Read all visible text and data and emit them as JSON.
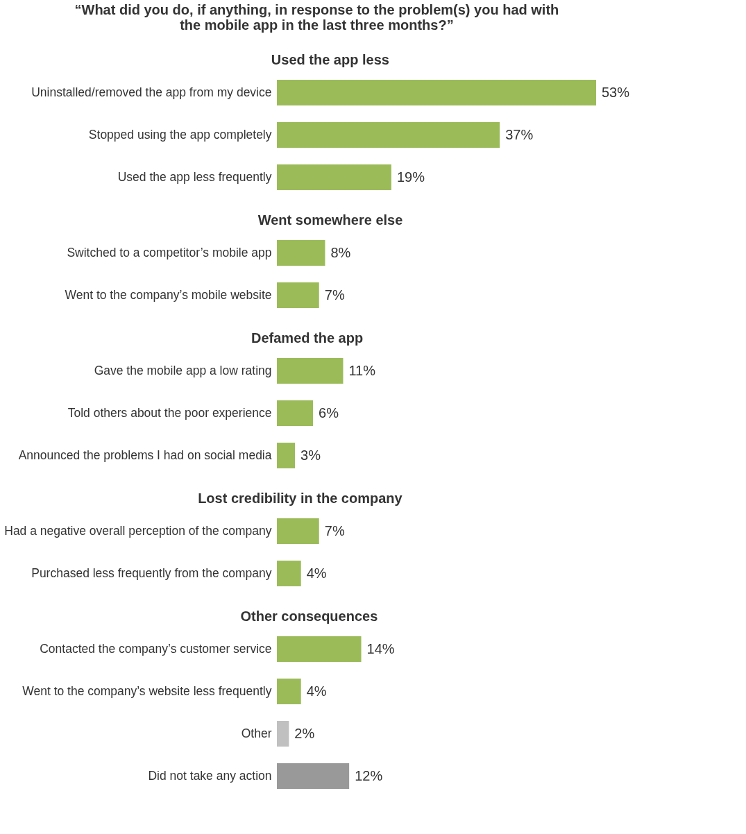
{
  "chart_data": [
    {
      "type": "bar",
      "orientation": "horizontal",
      "title": "“What did you do, if anything, in response to the problem(s) you had with the mobile app in the last three months?”",
      "subtitle": "Used the app less",
      "categories": [
        "Uninstalled/removed the app from my device",
        "Stopped using the app completely",
        "Used the app less frequently"
      ],
      "values": [
        53,
        37,
        19
      ],
      "colors": [
        "#9bbb59",
        "#9bbb59",
        "#9bbb59"
      ],
      "value_labels": [
        "53%",
        "37%",
        "19%"
      ]
    },
    {
      "type": "bar",
      "orientation": "horizontal",
      "title": "Went somewhere else",
      "categories": [
        "Switched to a competitor’s mobile app",
        "Went to the company’s mobile website"
      ],
      "values": [
        8,
        7
      ],
      "colors": [
        "#9bbb59",
        "#9bbb59"
      ],
      "value_labels": [
        "8%",
        "7%"
      ]
    },
    {
      "type": "bar",
      "orientation": "horizontal",
      "title": "Defamed the app",
      "categories": [
        "Gave the mobile app a low rating",
        "Told others about the poor experience",
        "Announced the problems I had on social media"
      ],
      "values": [
        11,
        6,
        3
      ],
      "colors": [
        "#9bbb59",
        "#9bbb59",
        "#9bbb59"
      ],
      "value_labels": [
        "11%",
        "6%",
        "3%"
      ]
    },
    {
      "type": "bar",
      "orientation": "horizontal",
      "title": "Lost credibility in the company",
      "categories": [
        "Had a negative overall perception of the company",
        "Purchased less frequently from the company"
      ],
      "values": [
        7,
        4
      ],
      "colors": [
        "#9bbb59",
        "#9bbb59"
      ],
      "value_labels": [
        "7%",
        "4%"
      ]
    },
    {
      "type": "bar",
      "orientation": "horizontal",
      "title": "Other consequences",
      "categories": [
        "Contacted the company’s customer service",
        "Went to the company’s website less frequently",
        "Other",
        "Did not take any action"
      ],
      "values": [
        14,
        4,
        2,
        12
      ],
      "colors": [
        "#9bbb59",
        "#9bbb59",
        "#c0c0c0",
        "#999999"
      ],
      "value_labels": [
        "14%",
        "4%",
        "2%",
        "12%"
      ]
    }
  ]
}
